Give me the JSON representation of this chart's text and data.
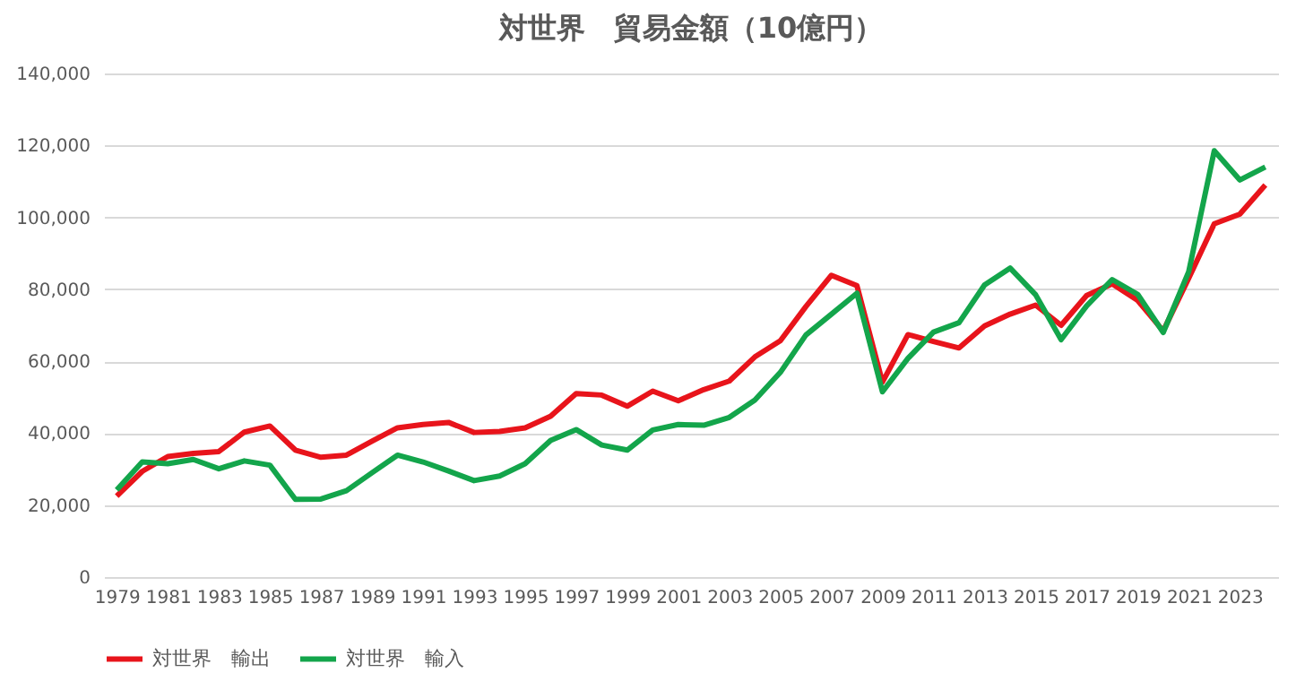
{
  "chart_data": {
    "type": "line",
    "title": "対世界　貿易金額（10億円）",
    "categories": [
      "1979",
      null,
      "1981",
      null,
      "1983",
      null,
      "1985",
      null,
      "1987",
      null,
      "1989",
      null,
      "1991",
      null,
      "1993",
      null,
      "1995",
      null,
      "1997",
      null,
      "1999",
      null,
      "2001",
      null,
      "2003",
      null,
      "2005",
      null,
      "2007",
      null,
      "2009",
      null,
      "2011",
      null,
      "2013",
      null,
      "2015",
      null,
      "2017",
      null,
      "2019",
      null,
      "2021",
      null,
      "2023",
      null
    ],
    "series": [
      {
        "name": "対世界　輸出",
        "color": "#e8141b",
        "values": [
          22500,
          29400,
          33500,
          34400,
          34900,
          40300,
          42000,
          35300,
          33300,
          33900,
          37800,
          41500,
          42400,
          43000,
          40200,
          40500,
          41500,
          44700,
          51000,
          50600,
          47500,
          51700,
          49000,
          52100,
          54500,
          61200,
          65700,
          75200,
          83900,
          81000,
          54200,
          67400,
          65500,
          63700,
          69800,
          73100,
          75600,
          70000,
          78300,
          81500,
          76900,
          68400,
          83100,
          98200,
          100900,
          109000
        ]
      },
      {
        "name": "対世界　輸入",
        "color": "#13a54b",
        "values": [
          24200,
          32000,
          31500,
          32700,
          30100,
          32300,
          31100,
          21600,
          21700,
          24000,
          29000,
          33900,
          32000,
          29500,
          26800,
          28100,
          31500,
          38000,
          41000,
          36700,
          35300,
          40900,
          42400,
          42200,
          44400,
          49200,
          56900,
          67300,
          73100,
          78900,
          51500,
          60800,
          68100,
          70700,
          81200,
          85900,
          78500,
          66000,
          75400,
          82700,
          78600,
          68000,
          84900,
          118500,
          110400,
          114000
        ]
      }
    ],
    "ylim": [
      0,
      140000
    ],
    "yticks": [
      0,
      {
        "value": 20000,
        "label": "20,000"
      },
      {
        "value": 40000,
        "label": "40,000"
      },
      {
        "value": 60000,
        "label": "60,000"
      },
      {
        "value": 80000,
        "label": "80,000"
      },
      {
        "value": 100000,
        "label": "100,000"
      },
      {
        "value": 120000,
        "label": "120,000"
      },
      {
        "value": 140000,
        "label": "140,000"
      }
    ],
    "grid": "y",
    "legend": "bottom",
    "marker": "none",
    "line_style": "solid"
  }
}
